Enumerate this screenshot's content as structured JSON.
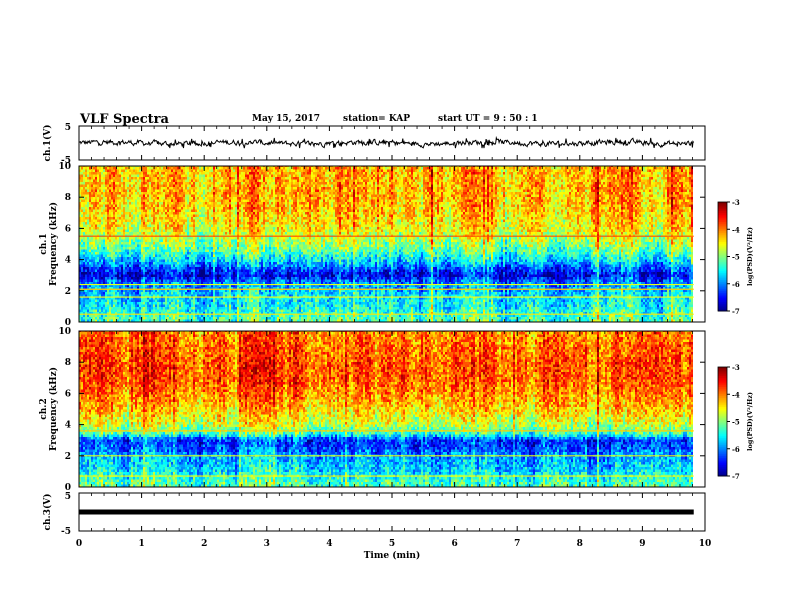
{
  "header": {
    "title": "VLF Spectra",
    "date": "May 15, 2017",
    "station": "station= KAP",
    "start": "start  UT =   9 : 50 : 1"
  },
  "chart_data": [
    {
      "type": "line",
      "panel": "ch1-waveform",
      "ylabel": "ch.1(V)",
      "ylim": [
        -5,
        5
      ],
      "y_ticks": [
        "5",
        "-5"
      ],
      "xlim": [
        0,
        10
      ],
      "color": "#000000",
      "noise_min": -1.5,
      "noise_max": 1.5,
      "x_end": 9.82
    },
    {
      "type": "heatmap",
      "panel": "ch1-spectrogram",
      "ylabel": "ch.1\nFrequency (kHz)",
      "ylabel_lines": [
        "ch.1",
        "Frequency (kHz)"
      ],
      "ylim": [
        0,
        10
      ],
      "y_ticks": [
        "0",
        "2",
        "4",
        "6",
        "8",
        "10"
      ],
      "xlim": [
        0,
        10
      ],
      "x_end": 9.82,
      "colorbar": {
        "label": "log(PSD)(V²/Hz)",
        "range": [
          -7,
          -3
        ],
        "ticks": [
          "-3",
          "-4",
          "-5",
          "-6",
          "-7"
        ]
      },
      "profile": [
        {
          "f": 0.3,
          "v": -5.2
        },
        {
          "f": 1.0,
          "v": -5.5
        },
        {
          "f": 1.8,
          "v": -5.6
        },
        {
          "f": 2.5,
          "v": -6.0
        },
        {
          "f": 3.0,
          "v": -6.6
        },
        {
          "f": 3.5,
          "v": -6.1
        },
        {
          "f": 4.0,
          "v": -5.6
        },
        {
          "f": 4.5,
          "v": -5.2
        },
        {
          "f": 5.0,
          "v": -4.9
        },
        {
          "f": 6.0,
          "v": -4.5
        },
        {
          "f": 7.0,
          "v": -4.3
        },
        {
          "f": 8.0,
          "v": -4.2
        },
        {
          "f": 10.0,
          "v": -4.2
        }
      ],
      "lines": [
        {
          "f": 5.5,
          "v": -3.8
        },
        {
          "f": 2.1,
          "v": -4.3
        },
        {
          "f": 2.4,
          "v": -4.6
        },
        {
          "f": 1.6,
          "v": -4.5
        },
        {
          "f": 0.5,
          "v": -4.4
        }
      ]
    },
    {
      "type": "heatmap",
      "panel": "ch2-spectrogram",
      "ylabel": "ch.2\nFrequency (kHz)",
      "ylabel_lines": [
        "ch.2",
        "Frequency (kHz)"
      ],
      "ylim": [
        0,
        10
      ],
      "y_ticks": [
        "0",
        "2",
        "4",
        "6",
        "8",
        "10"
      ],
      "xlim": [
        0,
        10
      ],
      "x_end": 9.82,
      "colorbar": {
        "label": "log(PSD)(V²/Hz)",
        "range": [
          -7,
          -3
        ],
        "ticks": [
          "-3",
          "-4",
          "-5",
          "-6",
          "-7"
        ]
      },
      "profile": [
        {
          "f": 0.3,
          "v": -5.2
        },
        {
          "f": 1.0,
          "v": -5.6
        },
        {
          "f": 1.8,
          "v": -5.8
        },
        {
          "f": 2.5,
          "v": -6.2
        },
        {
          "f": 3.0,
          "v": -6.3
        },
        {
          "f": 3.4,
          "v": -5.3
        },
        {
          "f": 4.0,
          "v": -4.7
        },
        {
          "f": 5.0,
          "v": -4.3
        },
        {
          "f": 6.0,
          "v": -4.0
        },
        {
          "f": 7.0,
          "v": -3.8
        },
        {
          "f": 8.0,
          "v": -3.8
        },
        {
          "f": 9.0,
          "v": -3.9
        },
        {
          "f": 10.0,
          "v": -4.0
        }
      ],
      "lines": [
        {
          "f": 3.6,
          "v": -4.3
        },
        {
          "f": 2.0,
          "v": -4.6
        },
        {
          "f": 0.7,
          "v": -4.5
        }
      ]
    },
    {
      "type": "line",
      "panel": "ch3-waveform",
      "ylabel": "ch.3(V)",
      "ylim": [
        -5,
        5
      ],
      "y_ticks": [
        "5",
        "0",
        "-5"
      ],
      "xlim": [
        0,
        10
      ],
      "x_end": 9.82,
      "constant_value": 0,
      "color": "#000000",
      "xlabel": "Time (min)",
      "x_ticks": [
        "0",
        "1",
        "2",
        "3",
        "4",
        "5",
        "6",
        "7",
        "8",
        "9",
        "10"
      ]
    }
  ]
}
